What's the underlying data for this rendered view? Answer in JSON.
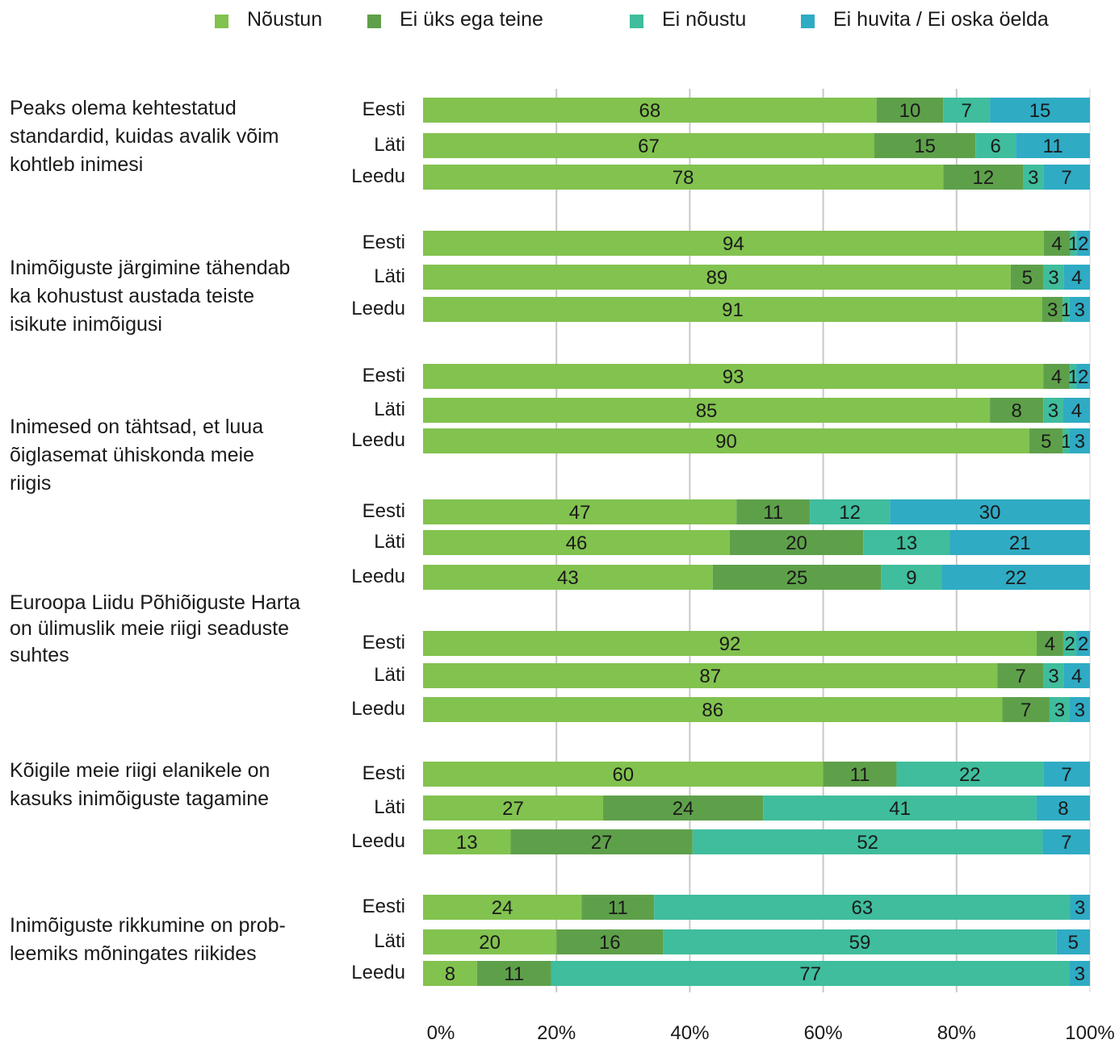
{
  "chart_data": {
    "type": "bar",
    "orientation": "horizontal",
    "stacked": true,
    "series": [
      {
        "name": "Nõustun",
        "color": "#82c24f"
      },
      {
        "name": "Ei üks ega teine",
        "color": "#5ea04a"
      },
      {
        "name": "Ei nõustu",
        "color": "#3fbd9c"
      },
      {
        "name": "Ei huvita / Ei oska öelda",
        "color": "#2fabc4"
      }
    ],
    "groups": [
      {
        "label": "Peaks olema kehtestatud standardid, kuidas avalik võim kohtleb inimesi",
        "rows": [
          {
            "country": "Eesti",
            "values": [
              68,
              10,
              7,
              15
            ]
          },
          {
            "country": "Läti",
            "values": [
              67,
              15,
              6,
              11
            ]
          },
          {
            "country": "Leedu",
            "values": [
              78,
              12,
              3,
              7
            ]
          }
        ]
      },
      {
        "label": "Inimõiguste järgimine tähendab ka kohustust austada teiste isikute inimõigusi",
        "rows": [
          {
            "country": "Eesti",
            "values": [
              94,
              4,
              1,
              2
            ]
          },
          {
            "country": "Läti",
            "values": [
              89,
              5,
              3,
              4
            ]
          },
          {
            "country": "Leedu",
            "values": [
              91,
              3,
              1,
              3
            ]
          }
        ]
      },
      {
        "label": "Inimesed on tähtsad, et luua õiglasemat ühiskonda meie riigis",
        "rows": [
          {
            "country": "Eesti",
            "values": [
              93,
              4,
              1,
              2
            ]
          },
          {
            "country": "Läti",
            "values": [
              85,
              8,
              3,
              4
            ]
          },
          {
            "country": "Leedu",
            "values": [
              90,
              5,
              1,
              3
            ]
          }
        ]
      },
      {
        "label": "Euroopa Liidu Põhiõiguste Harta on ülimuslik meie riigi seaduste suhtes",
        "rows": [
          {
            "country": "Eesti",
            "values": [
              47,
              11,
              12,
              30
            ]
          },
          {
            "country": "Läti",
            "values": [
              46,
              20,
              13,
              21
            ]
          },
          {
            "country": "Leedu",
            "values": [
              43,
              25,
              9,
              22
            ]
          }
        ]
      },
      {
        "label": "",
        "rows": [
          {
            "country": "Eesti",
            "values": [
              92,
              4,
              2,
              2
            ]
          },
          {
            "country": "Läti",
            "values": [
              87,
              7,
              3,
              4
            ]
          },
          {
            "country": "Leedu",
            "values": [
              86,
              7,
              3,
              3
            ]
          }
        ]
      },
      {
        "label": "Kõigile meie riigi elanikele on kasuks inimõiguste tagamine",
        "rows": [
          {
            "country": "Eesti",
            "values": [
              60,
              11,
              22,
              7
            ]
          },
          {
            "country": "Läti",
            "values": [
              27,
              24,
              41,
              8
            ]
          },
          {
            "country": "Leedu",
            "values": [
              13,
              27,
              52,
              7
            ]
          }
        ]
      },
      {
        "label": "Inimõiguste rikkumine on probleemiks mõningates riikides",
        "rows": [
          {
            "country": "Eesti",
            "values": [
              24,
              11,
              63,
              3
            ]
          },
          {
            "country": "Läti",
            "values": [
              20,
              16,
              59,
              5
            ]
          },
          {
            "country": "Leedu",
            "values": [
              8,
              11,
              77,
              3
            ]
          }
        ]
      }
    ],
    "question_texts": [
      [
        "Peaks olema kehtestatud",
        "standardid, kuidas avalik võim",
        "kohtleb inimesi"
      ],
      [
        "Inimõiguste järgimine tähendab",
        "ka kohustust austada teiste",
        "isikute inimõigusi"
      ],
      [
        "Inimesed on tähtsad, et luua",
        "õiglasemat ühiskonda meie",
        "riigis"
      ],
      [
        "Euroopa Liidu Põhiõiguste Harta",
        "on ülimuslik meie riigi seaduste",
        "suhtes"
      ],
      [
        "Kõigile meie riigi elanikele on",
        "kasuks inimõiguste tagamine"
      ],
      [
        "Inimõiguste rikkumine on prob-",
        "leemiks mõningates riikides"
      ]
    ],
    "x_ticks": [
      "0%",
      "20%",
      "40%",
      "60%",
      "80%",
      "100%"
    ],
    "xlim": [
      0,
      100
    ],
    "grid": true,
    "legend_position": "top"
  }
}
